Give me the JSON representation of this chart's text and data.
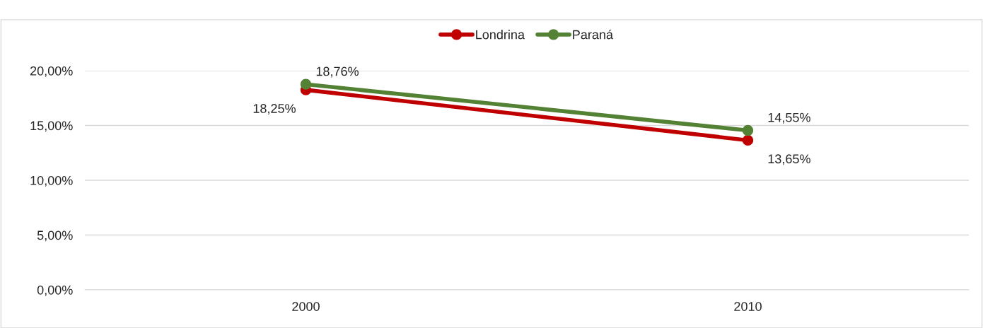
{
  "chart_data": {
    "type": "line",
    "categories": [
      "2000",
      "2010"
    ],
    "series": [
      {
        "name": "Londrina",
        "color": "#c00000",
        "values": [
          18.25,
          13.65
        ],
        "value_labels": [
          "18,25%",
          "13,65%"
        ]
      },
      {
        "name": "Paraná",
        "color": "#548235",
        "values": [
          18.76,
          14.55
        ],
        "value_labels": [
          "18,76%",
          "14,55%"
        ]
      }
    ],
    "ylim": [
      0,
      20
    ],
    "yticks": [
      {
        "value": 0,
        "label": "0,00%"
      },
      {
        "value": 5,
        "label": "5,00%"
      },
      {
        "value": 10,
        "label": "10,00%"
      },
      {
        "value": 15,
        "label": "15,00%"
      },
      {
        "value": 20,
        "label": "20,00%"
      }
    ],
    "grid": "y",
    "legend": "top",
    "marker": "circle",
    "line_style": "solid"
  }
}
